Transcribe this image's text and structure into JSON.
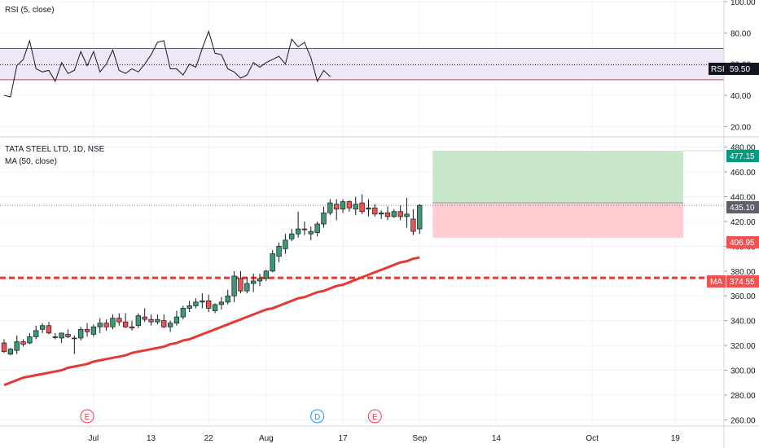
{
  "chart_data": [
    {
      "type": "line",
      "title": "RSI (5, close)",
      "ylim": [
        15,
        100
      ],
      "y_ticks": [
        "100.00",
        "80.00",
        "60.00",
        "40.00",
        "20.00"
      ],
      "y_tick_values": [
        100,
        80,
        60,
        40,
        20
      ],
      "bands": {
        "upper": 70,
        "lower": 50
      },
      "current_level": 59.5,
      "tag_label": "RSI",
      "tag_value": "59.50",
      "values": [
        40,
        39,
        59,
        63,
        75,
        57,
        55,
        56,
        49,
        61,
        54,
        56,
        68,
        59,
        68,
        55,
        60,
        69,
        56,
        54,
        57,
        55,
        60,
        66,
        74,
        75,
        57,
        57,
        53,
        60,
        58,
        70,
        81,
        67,
        66,
        57,
        55,
        51,
        53,
        61,
        58,
        61,
        63,
        65,
        60,
        76,
        71,
        74,
        64,
        49,
        56,
        52
      ]
    },
    {
      "type": "candlestick",
      "title": "TATA STEEL LTD, 1D, NSE",
      "subtitle": "MA (50, close)",
      "ylim": [
        255,
        487
      ],
      "y_ticks": [
        "480.00",
        "460.00",
        "440.00",
        "420.00",
        "400.00",
        "380.00",
        "360.00",
        "340.00",
        "320.00",
        "300.00",
        "280.00",
        "260.00"
      ],
      "y_tick_values": [
        480,
        460,
        440,
        420,
        400,
        380,
        360,
        340,
        320,
        300,
        280,
        260
      ],
      "x_ticks": [
        "Jul",
        "13",
        "22",
        "Aug",
        "17",
        "Sep",
        "14",
        "Oct",
        "19"
      ],
      "x_tick_bar_index": [
        14,
        23,
        32,
        41,
        53,
        65,
        77,
        92,
        105
      ],
      "ohlc": [
        [
          322,
          325,
          314,
          315
        ],
        [
          313,
          318,
          312,
          317
        ],
        [
          316,
          328,
          313,
          323
        ],
        [
          323,
          325,
          319,
          321
        ],
        [
          322,
          330,
          321,
          327
        ],
        [
          327,
          336,
          325,
          332
        ],
        [
          333,
          338,
          330,
          336
        ],
        [
          336,
          339,
          329,
          330
        ],
        [
          327,
          330,
          325,
          327
        ],
        [
          326,
          330,
          322,
          330
        ],
        [
          329,
          333,
          326,
          327
        ],
        [
          326,
          328,
          313,
          326
        ],
        [
          326,
          335,
          324,
          333
        ],
        [
          333,
          338,
          327,
          331
        ],
        [
          329,
          337,
          327,
          335
        ],
        [
          335,
          342,
          330,
          338
        ],
        [
          338,
          341,
          332,
          335
        ],
        [
          335,
          345,
          333,
          342
        ],
        [
          342,
          346,
          336,
          339
        ],
        [
          339,
          346,
          334,
          335
        ],
        [
          335,
          340,
          332,
          334
        ],
        [
          336,
          346,
          334,
          344
        ],
        [
          343,
          350,
          339,
          341
        ],
        [
          341,
          345,
          336,
          339
        ],
        [
          339,
          345,
          337,
          341
        ],
        [
          340,
          345,
          334,
          335
        ],
        [
          335,
          340,
          331,
          338
        ],
        [
          338,
          348,
          336,
          343
        ],
        [
          343,
          352,
          341,
          350
        ],
        [
          350,
          356,
          347,
          352
        ],
        [
          352,
          358,
          350,
          355
        ],
        [
          355,
          362,
          350,
          356
        ],
        [
          356,
          361,
          347,
          350
        ],
        [
          348,
          354,
          346,
          353
        ],
        [
          353,
          359,
          349,
          355
        ],
        [
          355,
          365,
          353,
          360
        ],
        [
          360,
          380,
          355,
          376
        ],
        [
          374,
          380,
          362,
          364
        ],
        [
          364,
          375,
          362,
          370
        ],
        [
          370,
          378,
          363,
          372
        ],
        [
          372,
          378,
          368,
          374
        ],
        [
          374,
          381,
          372,
          380
        ],
        [
          380,
          397,
          379,
          394
        ],
        [
          392,
          403,
          387,
          400
        ],
        [
          398,
          410,
          394,
          405
        ],
        [
          406,
          414,
          404,
          410
        ],
        [
          410,
          428,
          407,
          414
        ],
        [
          414,
          420,
          409,
          414
        ],
        [
          410,
          416,
          405,
          412
        ],
        [
          411,
          420,
          408,
          418
        ],
        [
          418,
          432,
          415,
          427
        ],
        [
          427,
          438,
          425,
          435
        ],
        [
          434,
          438,
          421,
          430
        ],
        [
          430,
          438,
          427,
          436
        ],
        [
          436,
          437,
          428,
          431
        ],
        [
          430,
          440,
          425,
          434
        ],
        [
          435,
          442,
          426,
          428
        ],
        [
          430,
          438,
          424,
          431
        ],
        [
          431,
          434,
          424,
          426
        ],
        [
          426,
          429,
          422,
          427
        ],
        [
          427,
          432,
          421,
          424
        ],
        [
          424,
          430,
          423,
          428
        ],
        [
          428,
          433,
          421,
          424
        ],
        [
          424,
          439,
          415,
          426
        ],
        [
          422,
          430,
          409,
          412
        ],
        [
          414,
          434,
          410,
          433
        ]
      ],
      "ma_values": [
        288,
        290,
        292,
        294,
        295,
        296,
        297,
        298,
        299,
        300,
        302,
        303,
        304,
        305,
        307,
        308,
        309,
        310,
        311,
        312,
        314,
        315,
        316,
        317,
        318,
        319,
        321,
        322,
        324,
        325,
        327,
        329,
        331,
        333,
        335,
        337,
        339,
        341,
        343,
        345,
        347,
        349,
        350,
        352,
        354,
        356,
        358,
        359,
        361,
        363,
        364,
        366,
        368,
        369,
        371,
        373,
        375,
        377,
        379,
        381,
        383,
        385,
        387,
        388,
        390,
        391
      ],
      "ma_tag": {
        "label": "MA",
        "value": "374.55",
        "level": 374.55
      },
      "position": {
        "target": "477.15",
        "target_level": 477.15,
        "entry": "435.10",
        "entry_level": 435.1,
        "stop": "406.95",
        "stop_level": 406.95
      },
      "event_markers": [
        {
          "bar": 13,
          "label": "E",
          "kind": "earnings"
        },
        {
          "bar": 49,
          "label": "D",
          "kind": "dividend"
        },
        {
          "bar": 58,
          "label": "E",
          "kind": "earnings"
        }
      ]
    }
  ],
  "colors": {
    "up": "#26a69a",
    "up_fill": "#3d9970",
    "down": "#ef5350",
    "ma": "#e53935",
    "rsi_line": "#131722",
    "rsi_band_fill": "#ede7f6",
    "target_fill": "#c8e6c9",
    "stop_fill": "#ffcdd2",
    "target_tag": "#089981",
    "grid": "#f0f3fa",
    "tag_dark": "#131722"
  }
}
